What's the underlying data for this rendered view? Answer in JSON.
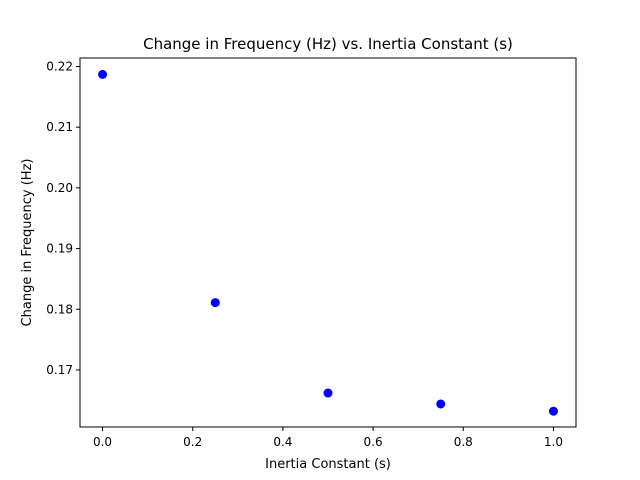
{
  "chart_data": {
    "type": "scatter",
    "title": "Change in Frequency (Hz) vs. Inertia Constant (s)",
    "xlabel": "Inertia Constant (s)",
    "ylabel": "Change in Frequency (Hz)",
    "xlim": [
      -0.05,
      1.05
    ],
    "ylim": [
      0.1606,
      0.2214
    ],
    "grid": false,
    "legend": "none",
    "x_ticks": [
      {
        "value": 0.0,
        "label": "0.0"
      },
      {
        "value": 0.2,
        "label": "0.2"
      },
      {
        "value": 0.4,
        "label": "0.4"
      },
      {
        "value": 0.6,
        "label": "0.6"
      },
      {
        "value": 0.8,
        "label": "0.8"
      },
      {
        "value": 1.0,
        "label": "1.0"
      }
    ],
    "y_ticks": [
      {
        "value": 0.17,
        "label": "0.17"
      },
      {
        "value": 0.18,
        "label": "0.18"
      },
      {
        "value": 0.19,
        "label": "0.19"
      },
      {
        "value": 0.2,
        "label": "0.20"
      },
      {
        "value": 0.21,
        "label": "0.21"
      },
      {
        "value": 0.22,
        "label": "0.22"
      }
    ],
    "series": [
      {
        "color": "#0000ff",
        "x": [
          0.0,
          0.25,
          0.5,
          0.75,
          1.0
        ],
        "y": [
          0.2187,
          0.1811,
          0.1662,
          0.1644,
          0.1632
        ]
      }
    ]
  }
}
